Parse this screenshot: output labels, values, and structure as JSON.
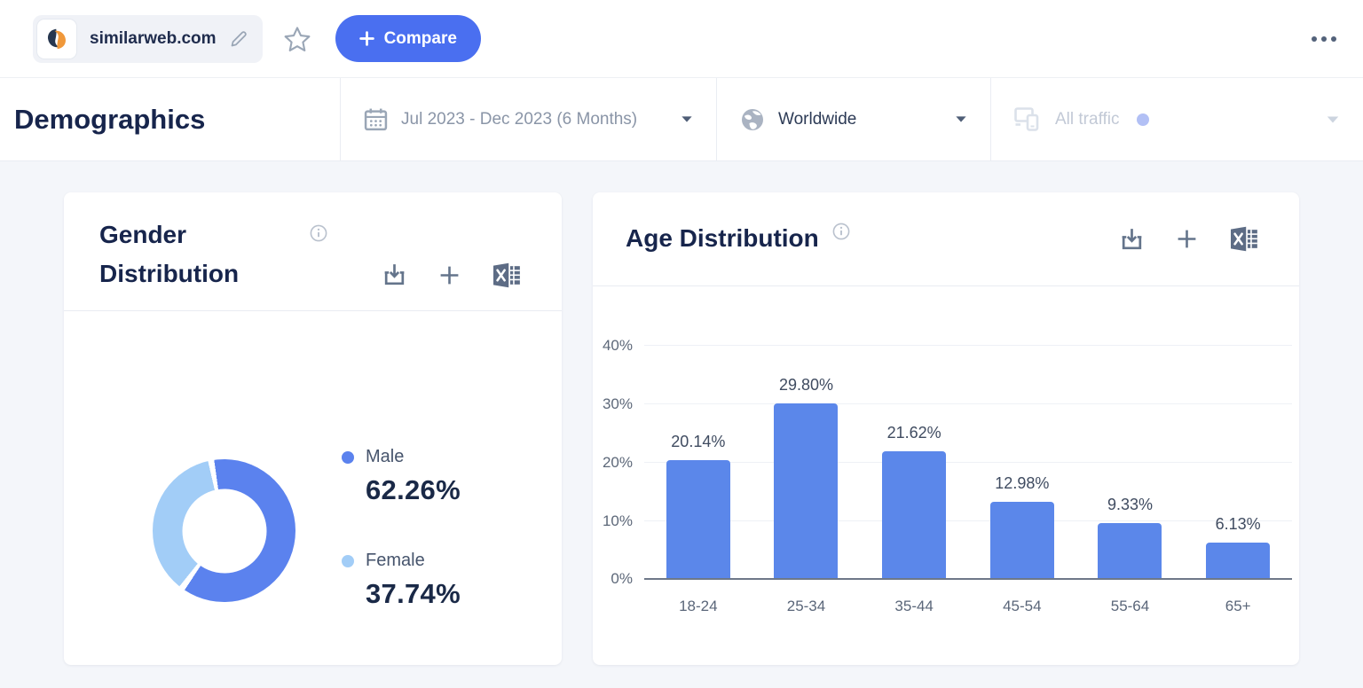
{
  "topbar": {
    "site_name": "similarweb.com",
    "compare_button_label": "Compare"
  },
  "filter_bar": {
    "page_title": "Demographics",
    "date_range": "Jul 2023 - Dec 2023 (6 Months)",
    "region": "Worldwide",
    "traffic_filter": "All traffic"
  },
  "gender_card": {
    "title": "Gender Distribution"
  },
  "age_card": {
    "title": "Age Distribution"
  },
  "icons": [
    "similarweb-logo",
    "edit-pencil-icon",
    "star-icon",
    "plus-icon",
    "ellipsis-menu-icon",
    "calendar-icon",
    "chevron-down-icon",
    "globe-icon",
    "devices-icon",
    "info-icon",
    "download-icon",
    "add-to-dashboard-icon",
    "excel-export-icon"
  ],
  "colors": {
    "accent_blue": "#4a6ff0",
    "male_blue": "#5b82ee",
    "female_light_blue": "#a2cdf7",
    "bar_blue": "#5b87ea",
    "title_navy": "#17254c",
    "page_background": "#f4f6fa"
  },
  "chart_data": [
    {
      "type": "pie",
      "donut": true,
      "title": "Gender Distribution",
      "labels": [
        "Male",
        "Female"
      ],
      "values": [
        62.26,
        37.74
      ],
      "display_values": [
        "62.26%",
        "37.74%"
      ],
      "colors": [
        "#5b82ee",
        "#a2cdf7"
      ],
      "legend_position": "right"
    },
    {
      "type": "bar",
      "title": "Age Distribution",
      "categories": [
        "18-24",
        "25-34",
        "35-44",
        "45-54",
        "55-64",
        "65+"
      ],
      "values": [
        20.14,
        29.8,
        21.62,
        12.98,
        9.33,
        6.13
      ],
      "data_labels": [
        "20.14%",
        "29.80%",
        "21.62%",
        "12.98%",
        "9.33%",
        "6.13%"
      ],
      "y_ticks": [
        "0%",
        "10%",
        "20%",
        "30%",
        "40%"
      ],
      "ylim": [
        0,
        40
      ],
      "grid": true,
      "bar_color": "#5b87ea"
    }
  ]
}
